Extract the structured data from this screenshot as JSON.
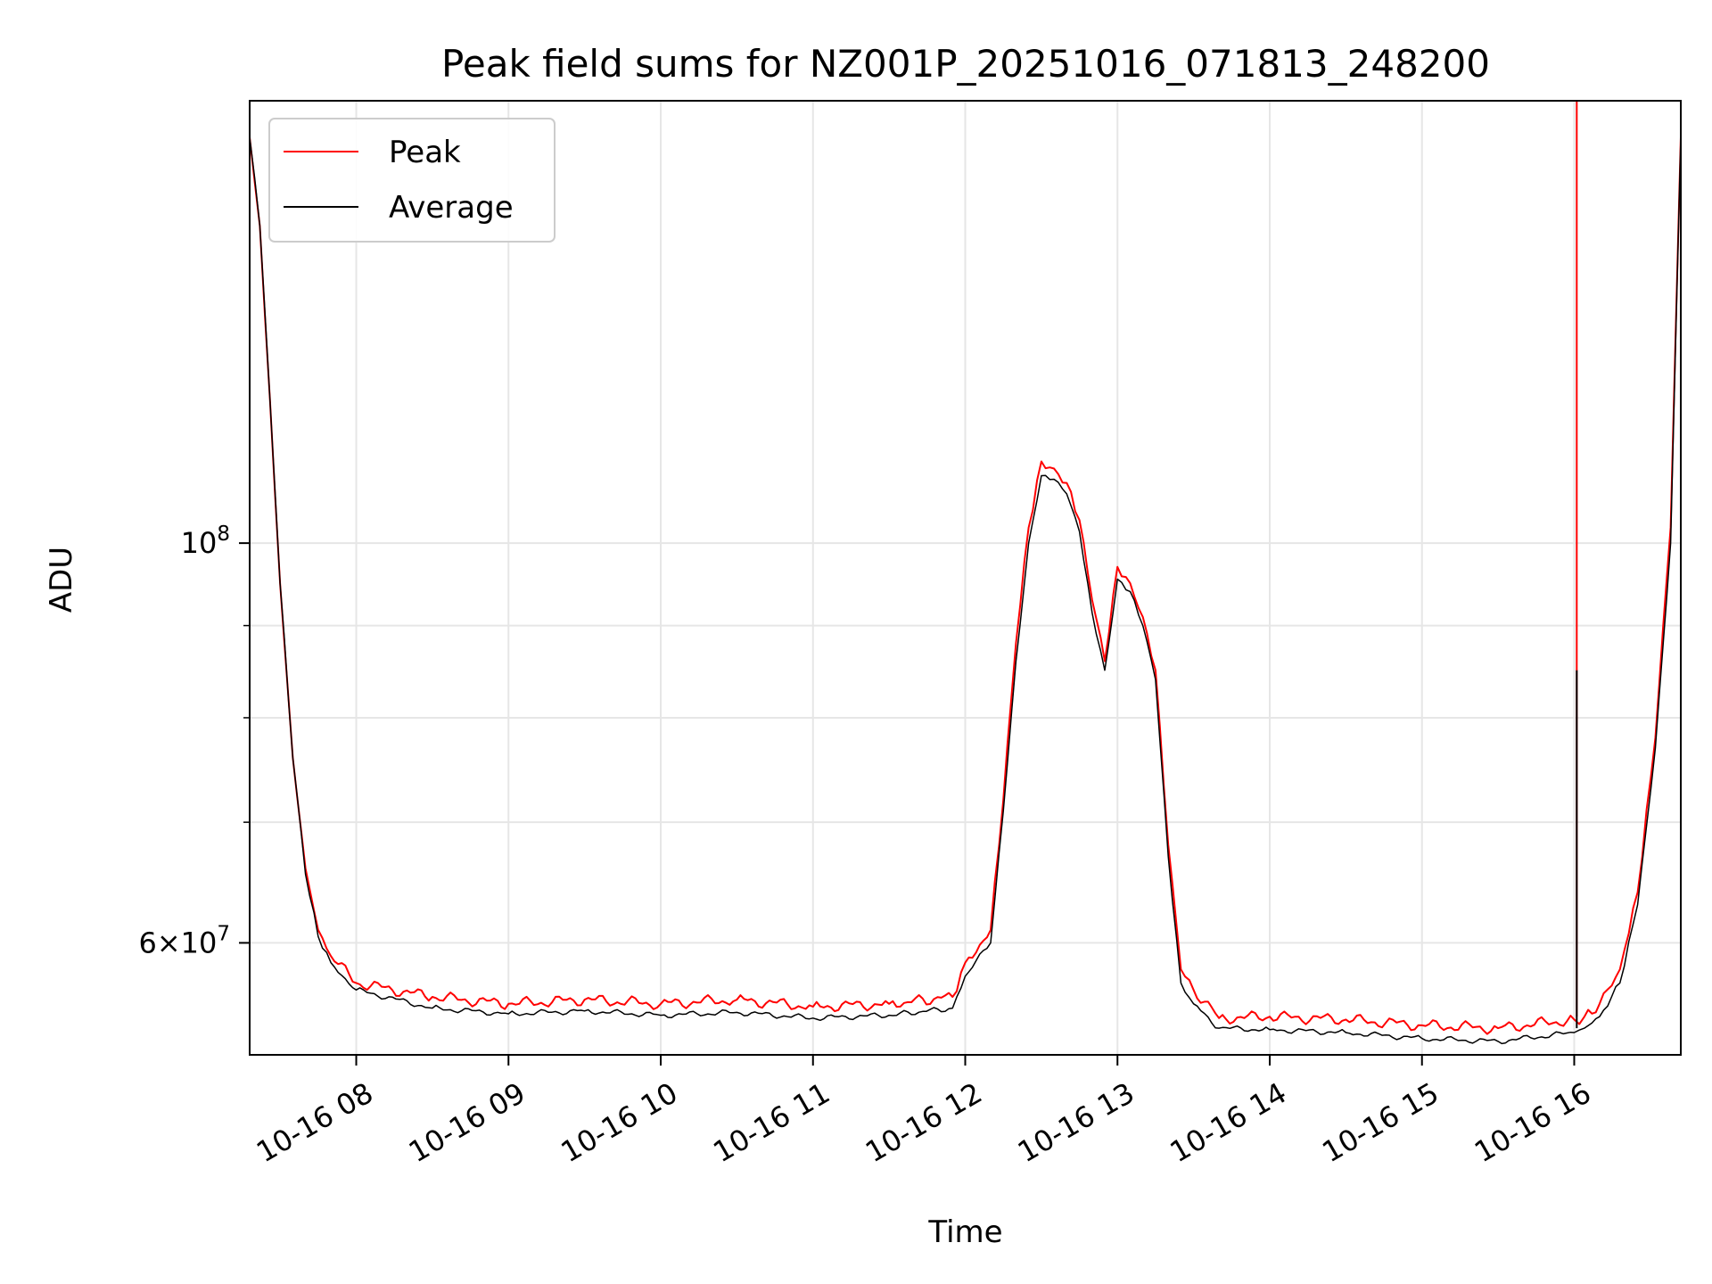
{
  "chart_data": {
    "type": "line",
    "title": "Peak field sums for NZ001P_20251016_071813_248200",
    "xlabel": "Time",
    "ylabel": "ADU",
    "x_axis": {
      "kind": "datetime",
      "min": "2025-10-16 07:18",
      "max": "2025-10-16 16:42",
      "ticks": [
        {
          "value": "2025-10-16 08:00",
          "label": "10-16 08"
        },
        {
          "value": "2025-10-16 09:00",
          "label": "10-16 09"
        },
        {
          "value": "2025-10-16 10:00",
          "label": "10-16 10"
        },
        {
          "value": "2025-10-16 11:00",
          "label": "10-16 11"
        },
        {
          "value": "2025-10-16 12:00",
          "label": "10-16 12"
        },
        {
          "value": "2025-10-16 13:00",
          "label": "10-16 13"
        },
        {
          "value": "2025-10-16 14:00",
          "label": "10-16 14"
        },
        {
          "value": "2025-10-16 15:00",
          "label": "10-16 15"
        },
        {
          "value": "2025-10-16 16:00",
          "label": "10-16 16"
        }
      ]
    },
    "y_axis": {
      "scale": "log",
      "ylim": [
        52000000,
        176000000
      ],
      "major_ticks": [
        {
          "value": 100000000,
          "label": "10^8"
        },
        {
          "value": 60000000,
          "label": "6×10^7"
        }
      ],
      "minor_ticks": [
        70000000,
        80000000,
        90000000
      ]
    },
    "grid": true,
    "legend": {
      "position": "upper left",
      "entries": [
        "Peak",
        "Average"
      ]
    },
    "series": [
      {
        "name": "Peak",
        "color": "#ff0000",
        "points": [
          [
            "2025-10-16 07:18",
            168000000
          ],
          [
            "2025-10-16 07:22",
            150000000
          ],
          [
            "2025-10-16 07:26",
            120000000
          ],
          [
            "2025-10-16 07:30",
            95000000
          ],
          [
            "2025-10-16 07:35",
            76000000
          ],
          [
            "2025-10-16 07:40",
            66000000
          ],
          [
            "2025-10-16 07:45",
            61000000
          ],
          [
            "2025-10-16 07:50",
            59000000
          ],
          [
            "2025-10-16 08:00",
            57000000
          ],
          [
            "2025-10-16 08:30",
            56000000
          ],
          [
            "2025-10-16 09:00",
            55500000
          ],
          [
            "2025-10-16 09:30",
            55800000
          ],
          [
            "2025-10-16 10:00",
            55500000
          ],
          [
            "2025-10-16 10:30",
            55800000
          ],
          [
            "2025-10-16 11:00",
            55300000
          ],
          [
            "2025-10-16 11:30",
            55500000
          ],
          [
            "2025-10-16 11:55",
            56000000
          ],
          [
            "2025-10-16 12:00",
            58500000
          ],
          [
            "2025-10-16 12:10",
            61000000
          ],
          [
            "2025-10-16 12:15",
            72000000
          ],
          [
            "2025-10-16 12:20",
            88000000
          ],
          [
            "2025-10-16 12:25",
            102000000
          ],
          [
            "2025-10-16 12:30",
            111000000
          ],
          [
            "2025-10-16 12:35",
            110000000
          ],
          [
            "2025-10-16 12:40",
            108000000
          ],
          [
            "2025-10-16 12:45",
            103000000
          ],
          [
            "2025-10-16 12:50",
            93000000
          ],
          [
            "2025-10-16 12:55",
            86000000
          ],
          [
            "2025-10-16 13:00",
            97000000
          ],
          [
            "2025-10-16 13:05",
            95000000
          ],
          [
            "2025-10-16 13:10",
            91000000
          ],
          [
            "2025-10-16 13:15",
            85000000
          ],
          [
            "2025-10-16 13:20",
            68000000
          ],
          [
            "2025-10-16 13:25",
            58000000
          ],
          [
            "2025-10-16 13:30",
            56500000
          ],
          [
            "2025-10-16 13:40",
            54500000
          ],
          [
            "2025-10-16 14:00",
            54600000
          ],
          [
            "2025-10-16 14:30",
            54400000
          ],
          [
            "2025-10-16 15:00",
            54000000
          ],
          [
            "2025-10-16 15:30",
            53800000
          ],
          [
            "2025-10-16 16:00",
            54400000
          ],
          [
            "2025-10-16 16:04",
            54600000
          ],
          [
            "2025-10-16 16:10",
            55500000
          ],
          [
            "2025-10-16 16:18",
            58000000
          ],
          [
            "2025-10-16 16:25",
            64000000
          ],
          [
            "2025-10-16 16:32",
            78000000
          ],
          [
            "2025-10-16 16:38",
            102000000
          ],
          [
            "2025-10-16 16:42",
            168000000
          ]
        ],
        "spike": {
          "time": "2025-10-16 16:01",
          "value_range": [
            54600000,
            176000000
          ]
        }
      },
      {
        "name": "Average",
        "color": "#000000",
        "points": [
          [
            "2025-10-16 07:18",
            168000000
          ],
          [
            "2025-10-16 07:22",
            150000000
          ],
          [
            "2025-10-16 07:26",
            120000000
          ],
          [
            "2025-10-16 07:30",
            95000000
          ],
          [
            "2025-10-16 07:35",
            76000000
          ],
          [
            "2025-10-16 07:40",
            65500000
          ],
          [
            "2025-10-16 07:45",
            60500000
          ],
          [
            "2025-10-16 07:50",
            58500000
          ],
          [
            "2025-10-16 08:00",
            56500000
          ],
          [
            "2025-10-16 08:30",
            55200000
          ],
          [
            "2025-10-16 09:00",
            54800000
          ],
          [
            "2025-10-16 09:30",
            55000000
          ],
          [
            "2025-10-16 10:00",
            54700000
          ],
          [
            "2025-10-16 10:30",
            54900000
          ],
          [
            "2025-10-16 11:00",
            54500000
          ],
          [
            "2025-10-16 11:30",
            54700000
          ],
          [
            "2025-10-16 11:55",
            55200000
          ],
          [
            "2025-10-16 12:00",
            57500000
          ],
          [
            "2025-10-16 12:10",
            60000000
          ],
          [
            "2025-10-16 12:15",
            71000000
          ],
          [
            "2025-10-16 12:20",
            86000000
          ],
          [
            "2025-10-16 12:25",
            100000000
          ],
          [
            "2025-10-16 12:30",
            109000000
          ],
          [
            "2025-10-16 12:35",
            108500000
          ],
          [
            "2025-10-16 12:40",
            106500000
          ],
          [
            "2025-10-16 12:45",
            101500000
          ],
          [
            "2025-10-16 12:50",
            91500000
          ],
          [
            "2025-10-16 12:55",
            85000000
          ],
          [
            "2025-10-16 13:00",
            95500000
          ],
          [
            "2025-10-16 13:05",
            94000000
          ],
          [
            "2025-10-16 13:10",
            90000000
          ],
          [
            "2025-10-16 13:15",
            84000000
          ],
          [
            "2025-10-16 13:20",
            67000000
          ],
          [
            "2025-10-16 13:25",
            57000000
          ],
          [
            "2025-10-16 13:30",
            55500000
          ],
          [
            "2025-10-16 13:40",
            53800000
          ],
          [
            "2025-10-16 14:00",
            53700000
          ],
          [
            "2025-10-16 14:30",
            53500000
          ],
          [
            "2025-10-16 15:00",
            53100000
          ],
          [
            "2025-10-16 15:30",
            52900000
          ],
          [
            "2025-10-16 16:00",
            53500000
          ],
          [
            "2025-10-16 16:04",
            53800000
          ],
          [
            "2025-10-16 16:10",
            54600000
          ],
          [
            "2025-10-16 16:18",
            57000000
          ],
          [
            "2025-10-16 16:25",
            63000000
          ],
          [
            "2025-10-16 16:32",
            77000000
          ],
          [
            "2025-10-16 16:38",
            100000000
          ],
          [
            "2025-10-16 16:42",
            168000000
          ]
        ],
        "spike": {
          "time": "2025-10-16 16:01",
          "value_range": [
            53800000,
            85000000
          ]
        }
      }
    ]
  }
}
